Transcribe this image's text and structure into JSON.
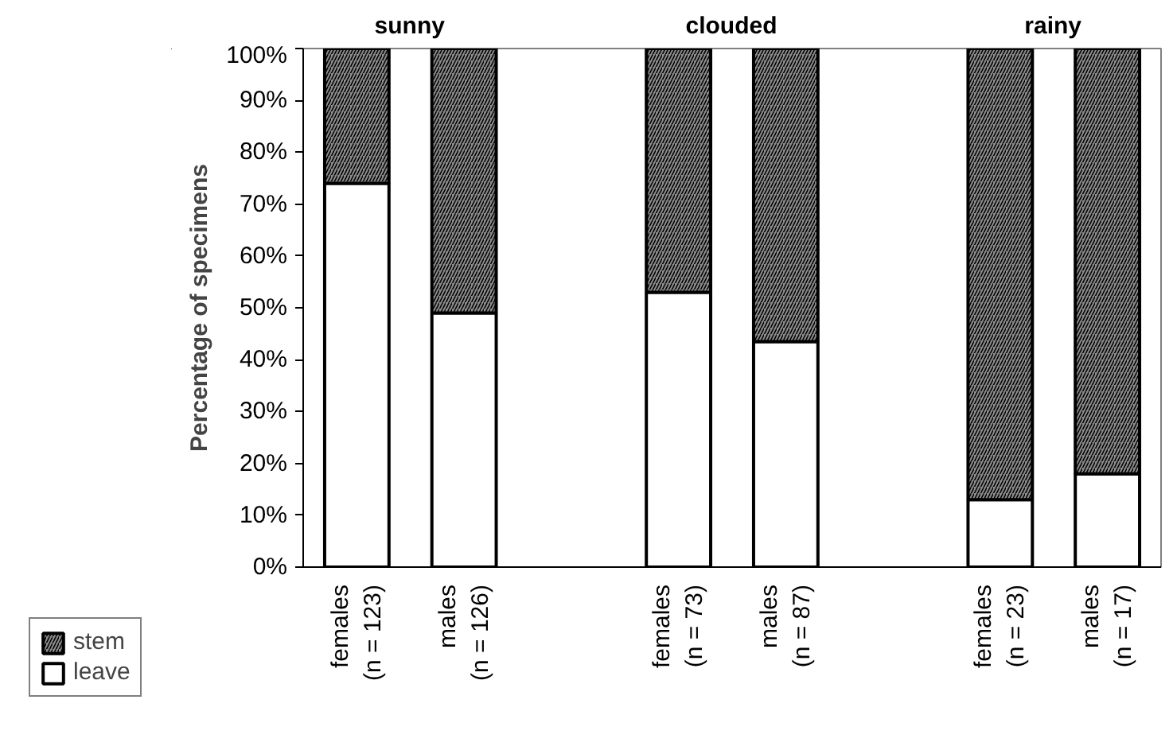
{
  "chart_data": {
    "type": "bar",
    "stacked": true,
    "ylabel": "Percentage of specimens",
    "categories": [
      "females\n(n = 123)",
      "males\n(n = 126)",
      null,
      "females\n(n = 73)",
      "males\n(n = 87)",
      null,
      "females\n(n = 23)",
      "males\n(n = 17)"
    ],
    "series": [
      {
        "name": "leave",
        "color": "#ffffff",
        "values": [
          74,
          49,
          null,
          53,
          43.5,
          null,
          13,
          18
        ]
      },
      {
        "name": "stem",
        "color": "#8c8c8c",
        "values": [
          26,
          51,
          null,
          47,
          56.5,
          null,
          87,
          82
        ]
      }
    ],
    "ylim": [
      0,
      100
    ],
    "yticks": [
      {
        "value": 0,
        "label": "0%"
      },
      {
        "value": 10,
        "label": "10%"
      },
      {
        "value": 20,
        "label": "20%"
      },
      {
        "value": 30,
        "label": "30%"
      },
      {
        "value": 40,
        "label": "40%"
      },
      {
        "value": 50,
        "label": "50%"
      },
      {
        "value": 60,
        "label": "60%"
      },
      {
        "value": 70,
        "label": "70%"
      },
      {
        "value": 80,
        "label": "80%"
      },
      {
        "value": 90,
        "label": "90%"
      },
      {
        "value": 100,
        "label": "100%"
      }
    ],
    "annotations": [
      "sunny",
      "clouded",
      "rainy"
    ],
    "grid": false,
    "legend": "bottom left"
  }
}
